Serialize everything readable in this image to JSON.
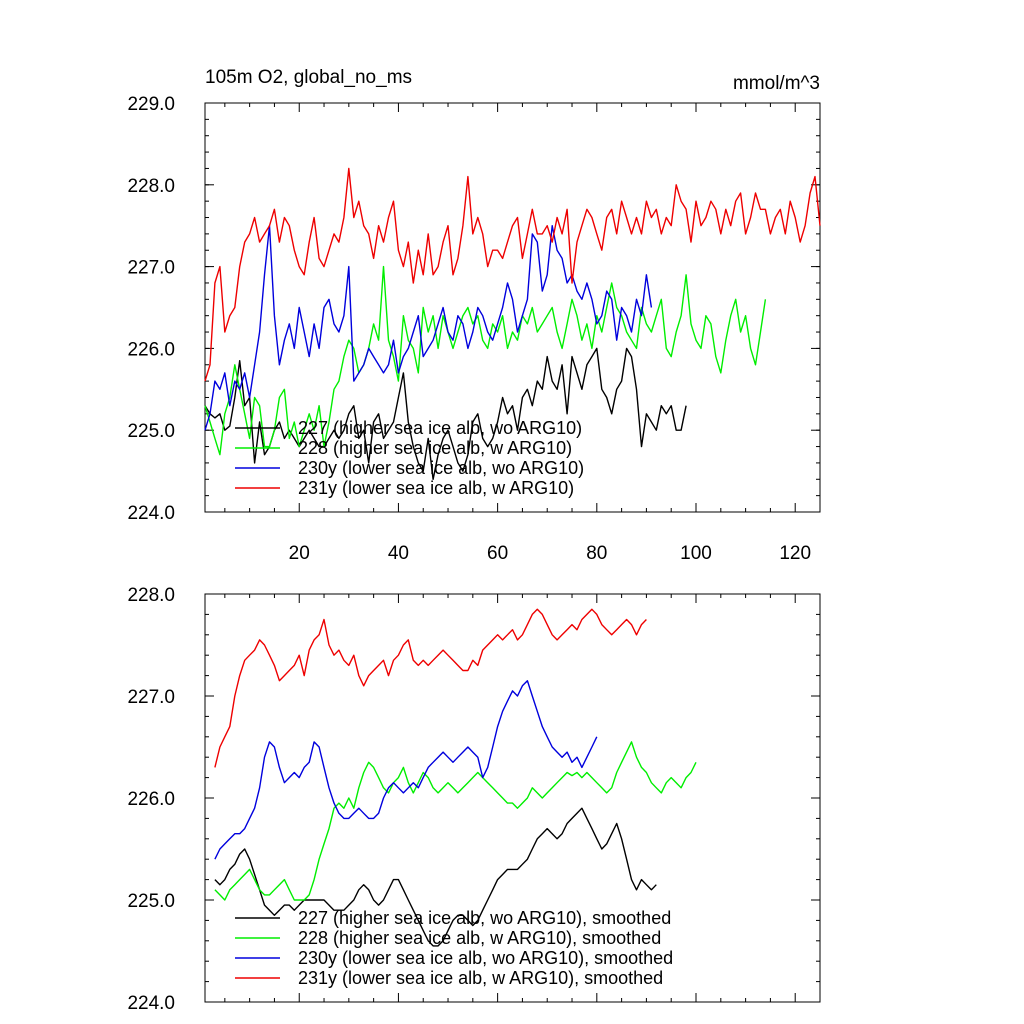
{
  "chart_data": [
    {
      "type": "line",
      "title": "105m O2, global_no_ms",
      "units": "mmol/m^3",
      "xlim": [
        1,
        125
      ],
      "ylim": [
        224,
        229
      ],
      "xticks": [
        20,
        40,
        60,
        80,
        100,
        120
      ],
      "yticks": [
        224,
        225,
        226,
        227,
        228,
        229
      ],
      "ytick_labels": [
        "224.0",
        "225.0",
        "226.0",
        "227.0",
        "228.0",
        "229.0"
      ],
      "xtick_labels_shown": true,
      "legend_position": "lower-left",
      "series": [
        {
          "name": "227 (higher sea ice alb, wo ARG10)",
          "color": "#000000",
          "x_start": 1,
          "values": [
            225.3,
            225.2,
            225.15,
            225.2,
            225.0,
            225.05,
            225.4,
            225.85,
            225.3,
            225.4,
            224.6,
            225.1,
            224.7,
            224.8,
            225.0,
            225.1,
            224.9,
            225.0,
            224.9,
            224.8,
            224.9,
            225.0,
            224.9,
            224.8,
            224.8,
            224.9,
            225.0,
            224.9,
            225.0,
            225.2,
            225.3,
            224.9,
            225.0,
            224.6,
            225.1,
            225.2,
            224.9,
            225.0,
            225.1,
            225.4,
            225.7,
            225.1,
            224.8,
            224.6,
            224.5,
            224.9,
            224.4,
            224.7,
            224.9,
            225.0,
            224.8,
            224.6,
            224.5,
            224.7,
            225.1,
            225.2,
            224.9,
            224.8,
            224.9,
            225.1,
            225.4,
            225.2,
            225.3,
            225.0,
            225.4,
            225.5,
            225.3,
            225.6,
            225.5,
            225.9,
            225.6,
            225.5,
            225.8,
            225.2,
            225.9,
            225.7,
            225.5,
            225.8,
            225.9,
            226.0,
            225.5,
            225.4,
            225.2,
            225.5,
            225.6,
            226.0,
            225.9,
            225.5,
            224.8,
            225.2,
            225.1,
            225.0,
            225.3,
            225.2,
            225.3,
            225.0,
            225.0,
            225.3
          ]
        },
        {
          "name": "228 (higher sea ice alb, w ARG10)",
          "color": "#00ee00",
          "x_start": 1,
          "values": [
            225.3,
            225.1,
            224.9,
            224.7,
            225.2,
            225.4,
            225.8,
            225.5,
            225.2,
            224.9,
            225.4,
            225.3,
            224.8,
            224.8,
            225.0,
            225.4,
            225.5,
            224.9,
            225.1,
            224.8,
            225.0,
            225.2,
            225.0,
            225.3,
            224.8,
            225.1,
            225.5,
            225.6,
            225.9,
            226.1,
            226.0,
            225.7,
            225.8,
            226.0,
            226.3,
            226.1,
            227.0,
            226.1,
            225.9,
            225.6,
            226.4,
            226.1,
            226.0,
            225.7,
            226.5,
            226.2,
            226.4,
            226.0,
            226.4,
            226.2,
            226.0,
            226.2,
            226.4,
            226.5,
            226.3,
            226.4,
            226.1,
            226.0,
            226.3,
            226.2,
            226.4,
            226.0,
            226.2,
            226.1,
            226.4,
            226.3,
            226.5,
            226.2,
            226.3,
            226.4,
            226.5,
            226.2,
            226.0,
            226.3,
            226.6,
            226.4,
            226.1,
            226.3,
            226.0,
            226.4,
            226.2,
            226.5,
            226.8,
            226.5,
            226.4,
            226.2,
            226.1,
            226.0,
            226.5,
            226.3,
            226.2,
            226.4,
            226.6,
            226.0,
            225.9,
            226.2,
            226.4,
            226.9,
            226.3,
            226.1,
            226.0,
            226.4,
            226.3,
            225.9,
            225.7,
            226.1,
            226.4,
            226.6,
            226.2,
            226.4,
            226.0,
            225.8,
            226.2,
            226.6
          ]
        },
        {
          "name": "230y (lower sea ice alb, wo ARG10)",
          "color": "#0000dd",
          "x_start": 1,
          "values": [
            225.0,
            225.2,
            225.6,
            225.5,
            225.7,
            225.3,
            225.6,
            225.5,
            225.7,
            225.4,
            225.8,
            226.2,
            226.9,
            227.5,
            226.4,
            225.8,
            226.1,
            226.3,
            226.0,
            226.5,
            226.2,
            225.9,
            226.3,
            226.0,
            226.5,
            226.6,
            226.3,
            226.2,
            226.4,
            227.0,
            225.6,
            225.7,
            225.8,
            226.0,
            225.9,
            225.8,
            225.7,
            225.8,
            226.1,
            225.7,
            225.9,
            226.0,
            226.2,
            226.4,
            225.9,
            226.0,
            226.1,
            226.3,
            226.5,
            226.2,
            226.1,
            226.4,
            226.3,
            226.0,
            226.2,
            226.5,
            226.4,
            226.2,
            226.1,
            226.3,
            226.5,
            226.8,
            226.6,
            226.2,
            226.4,
            226.6,
            227.4,
            227.3,
            226.7,
            226.9,
            227.5,
            227.2,
            227.1,
            226.8,
            226.9,
            226.7,
            226.6,
            226.8,
            226.6,
            226.3,
            226.4,
            226.7,
            226.6,
            226.1,
            226.5,
            226.4,
            226.2,
            226.6,
            226.4,
            226.9,
            226.5
          ]
        },
        {
          "name": "231y (lower sea ice alb, w ARG10)",
          "color": "#ee0000",
          "x_start": 1,
          "values": [
            225.6,
            225.8,
            226.8,
            227.0,
            226.2,
            226.4,
            226.5,
            227.0,
            227.3,
            227.4,
            227.6,
            227.3,
            227.4,
            227.5,
            227.7,
            227.3,
            227.6,
            227.5,
            227.2,
            227.0,
            226.9,
            227.3,
            227.6,
            227.1,
            227.0,
            227.2,
            227.4,
            227.3,
            227.6,
            228.2,
            227.6,
            227.8,
            227.5,
            227.4,
            227.1,
            227.5,
            227.3,
            227.6,
            227.8,
            227.2,
            227.0,
            227.3,
            226.8,
            227.2,
            226.9,
            227.4,
            226.9,
            227.0,
            227.3,
            227.5,
            226.9,
            227.1,
            227.5,
            228.1,
            227.4,
            227.6,
            227.4,
            227.0,
            227.2,
            227.2,
            227.1,
            227.3,
            227.5,
            227.6,
            227.1,
            227.4,
            227.7,
            227.4,
            227.4,
            227.5,
            227.3,
            227.6,
            227.4,
            227.7,
            226.8,
            227.3,
            227.5,
            227.7,
            227.6,
            227.4,
            227.2,
            227.6,
            227.7,
            227.4,
            227.8,
            227.6,
            227.4,
            227.6,
            227.4,
            227.8,
            227.6,
            227.7,
            227.4,
            227.6,
            227.5,
            228.0,
            227.8,
            227.7,
            227.3,
            227.8,
            227.5,
            227.6,
            227.8,
            227.7,
            227.4,
            227.7,
            227.5,
            227.8,
            227.9,
            227.4,
            227.6,
            227.9,
            227.7,
            227.7,
            227.4,
            227.6,
            227.7,
            227.4,
            227.8,
            227.6,
            227.3,
            227.5,
            227.9,
            228.1,
            227.5
          ]
        }
      ]
    },
    {
      "type": "line",
      "xlim": [
        1,
        125
      ],
      "ylim": [
        224,
        228
      ],
      "xticks": [
        20,
        40,
        60,
        80,
        100,
        120
      ],
      "yticks": [
        224,
        225,
        226,
        227,
        228
      ],
      "ytick_labels": [
        "224.0",
        "225.0",
        "226.0",
        "227.0",
        "228.0"
      ],
      "xtick_labels_shown": false,
      "legend_position": "lower-left",
      "series": [
        {
          "name": "227 (higher sea ice alb, wo ARG10), smoothed",
          "color": "#000000",
          "x_start": 3,
          "values": [
            225.2,
            225.15,
            225.2,
            225.3,
            225.35,
            225.45,
            225.5,
            225.4,
            225.25,
            225.1,
            224.95,
            224.9,
            224.85,
            224.9,
            224.95,
            224.95,
            224.9,
            224.95,
            225.0,
            225.0,
            225.0,
            225.0,
            225.0,
            224.95,
            224.9,
            224.9,
            224.9,
            224.95,
            225.0,
            225.1,
            225.15,
            225.1,
            225.0,
            224.95,
            225.0,
            225.1,
            225.2,
            225.2,
            225.1,
            225.0,
            224.9,
            224.8,
            224.7,
            224.6,
            224.55,
            224.55,
            224.6,
            224.7,
            224.8,
            224.85,
            224.85,
            224.8,
            224.75,
            224.8,
            224.9,
            225.0,
            225.1,
            225.2,
            225.25,
            225.3,
            225.3,
            225.3,
            225.35,
            225.4,
            225.5,
            225.6,
            225.65,
            225.7,
            225.65,
            225.6,
            225.65,
            225.75,
            225.8,
            225.85,
            225.9,
            225.8,
            225.7,
            225.6,
            225.5,
            225.55,
            225.65,
            225.75,
            225.6,
            225.4,
            225.2,
            225.1,
            225.2,
            225.15,
            225.1,
            225.15
          ]
        },
        {
          "name": "228 (higher sea ice alb, w ARG10), smoothed",
          "color": "#00ee00",
          "x_start": 3,
          "values": [
            225.1,
            225.05,
            225.0,
            225.1,
            225.15,
            225.2,
            225.25,
            225.3,
            225.2,
            225.1,
            225.05,
            225.05,
            225.1,
            225.15,
            225.2,
            225.1,
            225.0,
            225.0,
            225.0,
            225.05,
            225.2,
            225.4,
            225.55,
            225.7,
            225.9,
            225.95,
            225.9,
            226.0,
            225.9,
            226.1,
            226.25,
            226.35,
            226.3,
            226.2,
            226.1,
            226.05,
            226.15,
            226.2,
            226.3,
            226.15,
            226.05,
            226.15,
            226.25,
            226.2,
            226.1,
            226.05,
            226.1,
            226.15,
            226.1,
            226.05,
            226.1,
            226.15,
            226.2,
            226.25,
            226.2,
            226.15,
            226.1,
            226.05,
            226.0,
            225.95,
            225.95,
            225.9,
            225.95,
            226.0,
            226.1,
            226.05,
            226.0,
            226.05,
            226.1,
            226.15,
            226.2,
            226.25,
            226.22,
            226.25,
            226.2,
            226.25,
            226.2,
            226.15,
            226.1,
            226.05,
            226.1,
            226.25,
            226.35,
            226.45,
            226.55,
            226.4,
            226.3,
            226.25,
            226.15,
            226.1,
            226.05,
            226.15,
            226.2,
            226.15,
            226.1,
            226.2,
            226.25,
            226.35
          ]
        },
        {
          "name": "230y (lower sea ice alb, wo ARG10), smoothed",
          "color": "#0000dd",
          "x_start": 3,
          "values": [
            225.4,
            225.5,
            225.55,
            225.6,
            225.65,
            225.65,
            225.7,
            225.8,
            225.9,
            226.1,
            226.4,
            226.55,
            226.5,
            226.3,
            226.15,
            226.2,
            226.25,
            226.2,
            226.3,
            226.35,
            226.55,
            226.5,
            226.3,
            226.1,
            225.95,
            225.85,
            225.8,
            225.8,
            225.85,
            225.9,
            225.85,
            225.8,
            225.8,
            225.85,
            226.0,
            226.1,
            226.15,
            226.1,
            226.05,
            226.1,
            226.15,
            226.1,
            226.2,
            226.3,
            226.35,
            226.4,
            226.45,
            226.4,
            226.35,
            226.4,
            226.45,
            226.5,
            226.45,
            226.4,
            226.2,
            226.3,
            226.5,
            226.7,
            226.85,
            226.95,
            227.05,
            227.0,
            227.1,
            227.15,
            227.0,
            226.85,
            226.7,
            226.6,
            226.5,
            226.45,
            226.4,
            226.45,
            226.35,
            226.4,
            226.3,
            226.4,
            226.5,
            226.6
          ]
        },
        {
          "name": "231y (lower sea ice alb, w ARG10), smoothed",
          "color": "#ee0000",
          "x_start": 3,
          "values": [
            226.3,
            226.5,
            226.6,
            226.7,
            227.0,
            227.2,
            227.35,
            227.4,
            227.45,
            227.55,
            227.5,
            227.4,
            227.3,
            227.15,
            227.2,
            227.25,
            227.3,
            227.4,
            227.2,
            227.45,
            227.55,
            227.6,
            227.75,
            227.5,
            227.4,
            227.45,
            227.35,
            227.3,
            227.4,
            227.2,
            227.1,
            227.2,
            227.25,
            227.3,
            227.35,
            227.2,
            227.35,
            227.4,
            227.5,
            227.55,
            227.35,
            227.3,
            227.35,
            227.3,
            227.35,
            227.4,
            227.45,
            227.4,
            227.35,
            227.3,
            227.25,
            227.25,
            227.35,
            227.3,
            227.45,
            227.5,
            227.55,
            227.6,
            227.55,
            227.6,
            227.65,
            227.55,
            227.6,
            227.7,
            227.8,
            227.85,
            227.8,
            227.7,
            227.6,
            227.55,
            227.6,
            227.65,
            227.7,
            227.65,
            227.75,
            227.8,
            227.85,
            227.8,
            227.7,
            227.65,
            227.6,
            227.65,
            227.7,
            227.75,
            227.7,
            227.6,
            227.7,
            227.75
          ]
        }
      ]
    }
  ]
}
